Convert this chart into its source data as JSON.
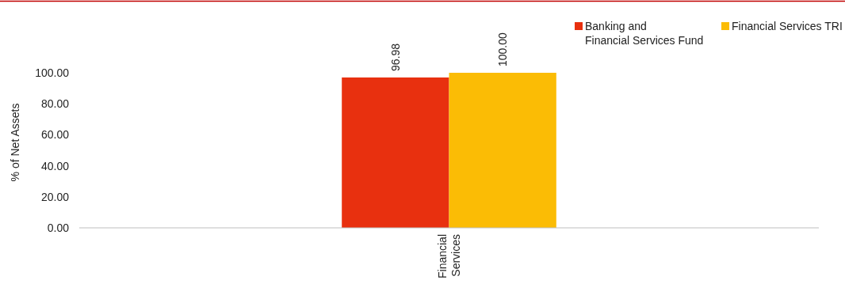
{
  "chart_data": {
    "type": "bar",
    "ylabel": "% of Net Assets",
    "categories": [
      "Financial Services"
    ],
    "series": [
      {
        "name": "Banking and Financial Services Fund",
        "color": "#e8300f",
        "values": [
          96.98
        ]
      },
      {
        "name": "Financial Services TRI",
        "color": "#fbbc05",
        "values": [
          100.0
        ]
      }
    ],
    "ylim": [
      0,
      100
    ],
    "yticks": [
      {
        "value": 0,
        "label": "0.00"
      },
      {
        "value": 20,
        "label": "20.00"
      },
      {
        "value": 40,
        "label": "40.00"
      },
      {
        "value": 60,
        "label": "60.00"
      },
      {
        "value": 80,
        "label": "80.00"
      },
      {
        "value": 100,
        "label": "100.00"
      }
    ],
    "value_labels": [
      [
        "96.98"
      ],
      [
        "100.00"
      ]
    ],
    "legend": "top right",
    "grid": false
  }
}
